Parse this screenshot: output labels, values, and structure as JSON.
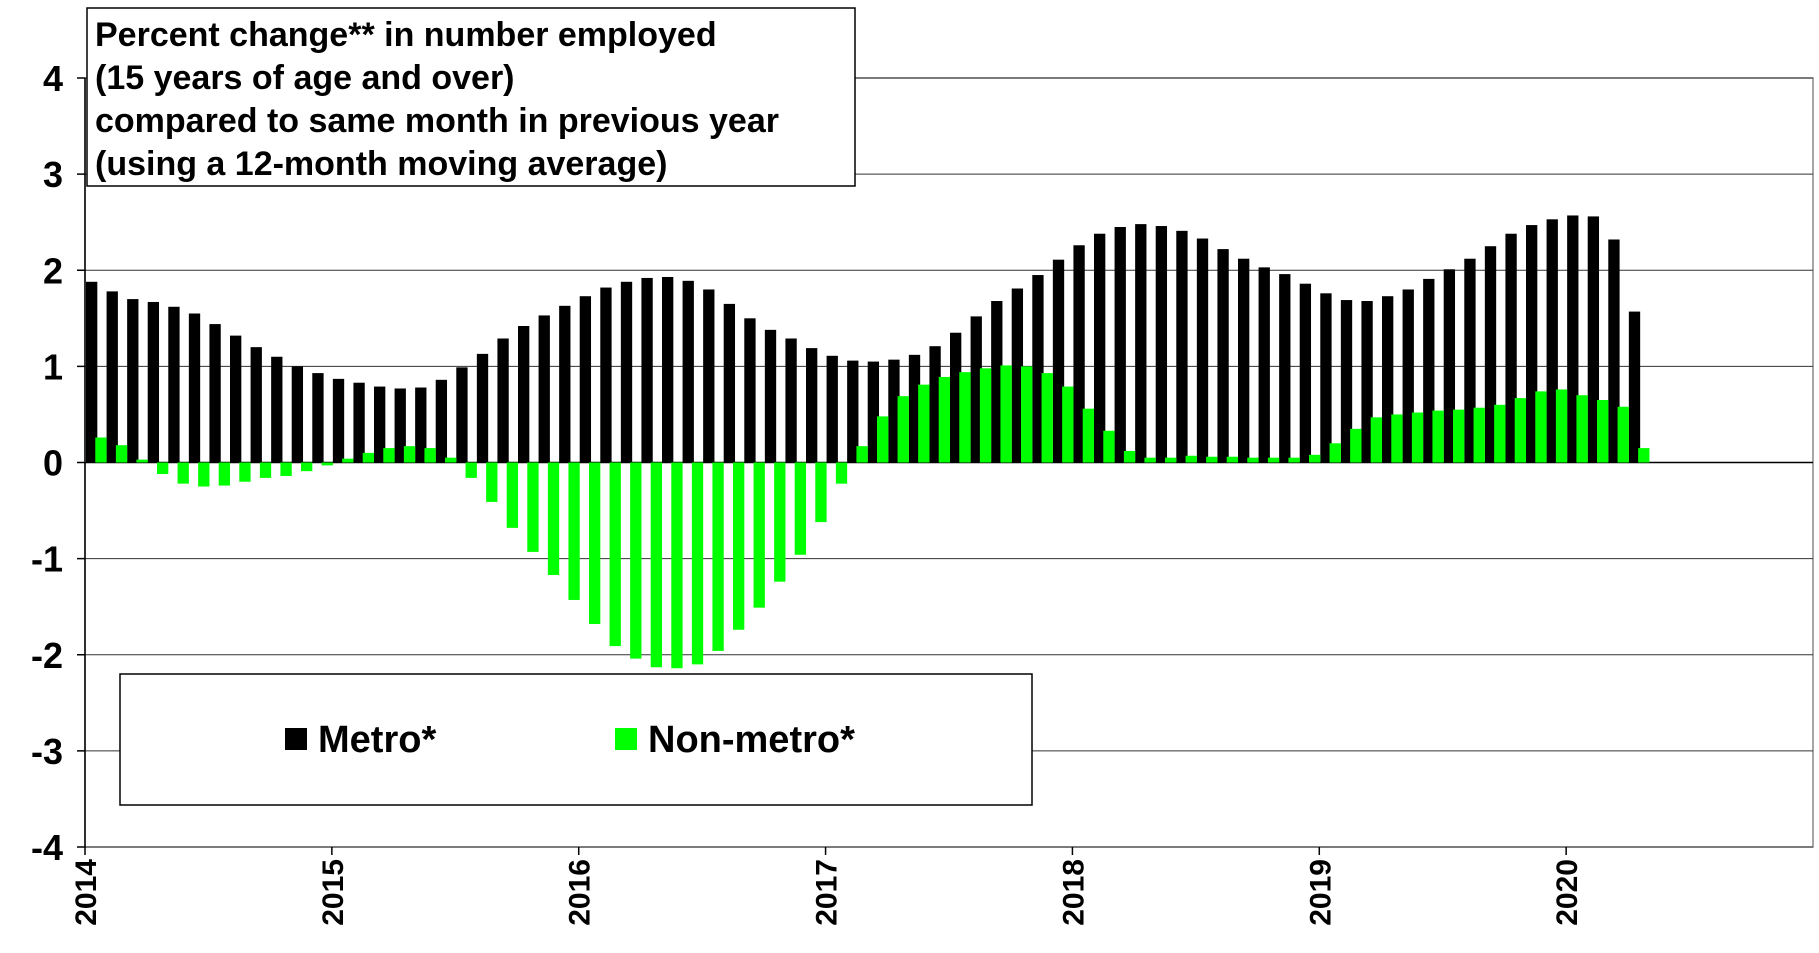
{
  "chart_data": {
    "type": "bar",
    "title": [
      "Percent change** in number employed",
      "(15 years of age and over)",
      "compared to same month in previous year",
      "(using a 12-month moving average)"
    ],
    "categories": [
      "2014",
      null,
      null,
      null,
      null,
      null,
      null,
      null,
      null,
      null,
      null,
      null,
      "2015",
      null,
      null,
      null,
      null,
      null,
      null,
      null,
      null,
      null,
      null,
      null,
      "2016",
      null,
      null,
      null,
      null,
      null,
      null,
      null,
      null,
      null,
      null,
      null,
      "2017",
      null,
      null,
      null,
      null,
      null,
      null,
      null,
      null,
      null,
      null,
      null,
      "2018",
      null,
      null,
      null,
      null,
      null,
      null,
      null,
      null,
      null,
      null,
      null,
      "2019",
      null,
      null,
      null,
      null,
      null,
      null,
      null,
      null,
      null,
      null,
      null,
      "2020",
      null,
      null,
      null
    ],
    "series": [
      {
        "name": "Metro*",
        "color": "#000000",
        "values": [
          1.88,
          1.78,
          1.7,
          1.67,
          1.62,
          1.55,
          1.44,
          1.32,
          1.2,
          1.1,
          1.0,
          0.93,
          0.87,
          0.83,
          0.79,
          0.77,
          0.78,
          0.86,
          0.99,
          1.13,
          1.29,
          1.42,
          1.53,
          1.63,
          1.73,
          1.82,
          1.88,
          1.92,
          1.93,
          1.89,
          1.8,
          1.65,
          1.5,
          1.38,
          1.29,
          1.19,
          1.11,
          1.06,
          1.05,
          1.07,
          1.12,
          1.21,
          1.35,
          1.52,
          1.68,
          1.81,
          1.95,
          2.11,
          2.26,
          2.38,
          2.45,
          2.48,
          2.46,
          2.41,
          2.33,
          2.22,
          2.12,
          2.03,
          1.96,
          1.86,
          1.76,
          1.69,
          1.68,
          1.73,
          1.8,
          1.91,
          2.01,
          2.12,
          2.25,
          2.38,
          2.47,
          2.53,
          2.57,
          2.56,
          2.32,
          1.57
        ]
      },
      {
        "name": "Non-metro*",
        "color": "#00ff00",
        "values": [
          0.26,
          0.18,
          0.03,
          -0.12,
          -0.22,
          -0.25,
          -0.24,
          -0.2,
          -0.16,
          -0.14,
          -0.09,
          -0.03,
          0.04,
          0.1,
          0.15,
          0.17,
          0.15,
          0.05,
          -0.16,
          -0.41,
          -0.68,
          -0.93,
          -1.17,
          -1.43,
          -1.68,
          -1.91,
          -2.04,
          -2.13,
          -2.14,
          -2.1,
          -1.96,
          -1.74,
          -1.51,
          -1.24,
          -0.96,
          -0.62,
          -0.22,
          0.17,
          0.48,
          0.69,
          0.81,
          0.89,
          0.94,
          0.98,
          1.01,
          1.0,
          0.93,
          0.79,
          0.56,
          0.33,
          0.12,
          0.05,
          0.05,
          0.07,
          0.06,
          0.06,
          0.05,
          0.05,
          0.05,
          0.08,
          0.2,
          0.35,
          0.47,
          0.5,
          0.52,
          0.54,
          0.55,
          0.57,
          0.6,
          0.67,
          0.74,
          0.76,
          0.7,
          0.65,
          0.58,
          0.15
        ]
      }
    ],
    "ylim": [
      -4,
      4
    ],
    "yticks": [
      -4,
      -3,
      -2,
      -1,
      0,
      1,
      2,
      3,
      4
    ],
    "grid": true
  }
}
